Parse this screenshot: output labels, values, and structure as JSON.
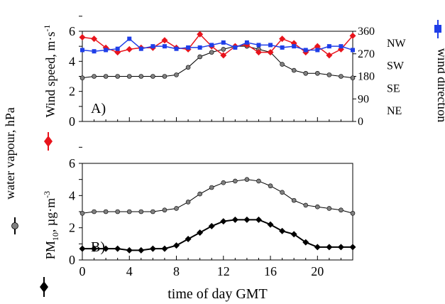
{
  "figure": {
    "side_labels": {
      "vapour": "water vapour, hPa",
      "wind_speed": "Wind speed, m·s",
      "wind_speed_sup": "-1",
      "wind_dir": "wind direction",
      "pm10_pre": "PM",
      "pm10_sub": "10",
      "pm10_mid": ", µg·m",
      "pm10_sup": "-3"
    }
  },
  "chart_data": [
    {
      "id": "A",
      "type": "line",
      "panel_label": "A)",
      "ylim": [
        0,
        6
      ],
      "yticks": [
        0,
        2,
        4,
        6
      ],
      "y2lim": [
        0,
        360
      ],
      "y2ticks": [
        0,
        90,
        180,
        270,
        360
      ],
      "y2_direction_labels": [
        {
          "value": 315,
          "label": "NW"
        },
        {
          "value": 225,
          "label": "SW"
        },
        {
          "value": 135,
          "label": "SE"
        },
        {
          "value": 45,
          "label": "NE"
        }
      ],
      "xlim": [
        0,
        23
      ],
      "xticks": [
        0,
        4,
        8,
        12,
        16,
        20
      ],
      "x": [
        0,
        1,
        2,
        3,
        4,
        5,
        6,
        7,
        8,
        9,
        10,
        11,
        12,
        13,
        14,
        15,
        16,
        17,
        18,
        19,
        20,
        21,
        22,
        23
      ],
      "series": [
        {
          "key": "vapour",
          "axis": "left",
          "color": "#808080",
          "marker": "circle",
          "values": [
            2.9,
            3.0,
            3.0,
            3.0,
            3.0,
            3.0,
            3.0,
            3.0,
            3.1,
            3.6,
            4.3,
            4.6,
            4.8,
            5.0,
            5.0,
            4.8,
            4.6,
            3.8,
            3.4,
            3.2,
            3.2,
            3.1,
            3.0,
            2.9
          ]
        },
        {
          "key": "wind_speed",
          "axis": "left",
          "color": "#e8141c",
          "marker": "diamond",
          "values": [
            5.6,
            5.5,
            4.9,
            4.6,
            4.8,
            4.9,
            4.9,
            5.4,
            4.9,
            4.8,
            5.8,
            5.0,
            4.4,
            5.0,
            5.1,
            4.6,
            4.6,
            5.5,
            5.2,
            4.6,
            5.0,
            4.4,
            4.8,
            5.7
          ]
        },
        {
          "key": "wind_direction",
          "axis": "right",
          "color": "#1f3ee8",
          "marker": "square",
          "values": [
            285,
            280,
            285,
            290,
            330,
            290,
            300,
            300,
            290,
            295,
            295,
            305,
            315,
            295,
            315,
            305,
            305,
            295,
            300,
            285,
            285,
            300,
            300,
            285
          ]
        }
      ]
    },
    {
      "id": "B",
      "type": "line",
      "panel_label": "B)",
      "xlabel": "time of day GMT",
      "ylim": [
        0,
        6
      ],
      "yticks": [
        0,
        2,
        4,
        6
      ],
      "xlim": [
        0,
        23
      ],
      "xticks": [
        0,
        4,
        8,
        12,
        16,
        20
      ],
      "x": [
        0,
        1,
        2,
        3,
        4,
        5,
        6,
        7,
        8,
        9,
        10,
        11,
        12,
        13,
        14,
        15,
        16,
        17,
        18,
        19,
        20,
        21,
        22,
        23
      ],
      "series": [
        {
          "key": "vapour",
          "axis": "left",
          "color": "#808080",
          "marker": "circle",
          "values": [
            2.9,
            3.0,
            3.0,
            3.0,
            3.0,
            3.0,
            3.0,
            3.1,
            3.2,
            3.6,
            4.1,
            4.5,
            4.8,
            4.9,
            5.0,
            4.9,
            4.6,
            4.2,
            3.7,
            3.4,
            3.3,
            3.2,
            3.1,
            2.9
          ]
        },
        {
          "key": "pm10",
          "axis": "left",
          "color": "#000000",
          "marker": "diamond",
          "values": [
            0.7,
            0.7,
            0.7,
            0.7,
            0.6,
            0.6,
            0.7,
            0.7,
            0.9,
            1.3,
            1.7,
            2.1,
            2.4,
            2.5,
            2.5,
            2.5,
            2.2,
            1.8,
            1.6,
            1.1,
            0.8,
            0.8,
            0.8,
            0.8
          ]
        }
      ]
    }
  ]
}
